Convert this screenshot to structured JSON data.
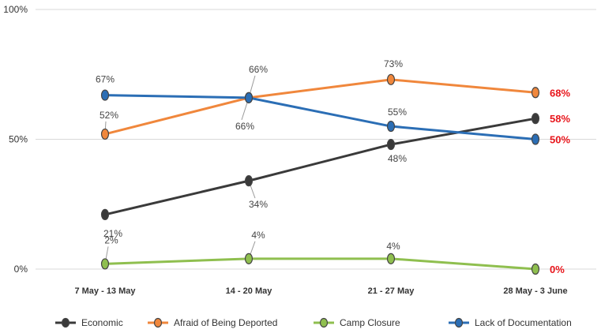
{
  "chart_data": {
    "type": "line",
    "categories": [
      "7 May - 13 May",
      "14 - 20 May",
      "21 - 27 May",
      "28 May - 3 June"
    ],
    "ylim": [
      0,
      100
    ],
    "yticks": [
      "0%",
      "50%",
      "100%"
    ],
    "grid": true,
    "legend_position": "bottom",
    "series": [
      {
        "name": "Economic",
        "color": "#3a3a3a",
        "values": [
          21,
          34,
          48,
          58
        ],
        "labels": [
          "21%",
          "34%",
          "48%",
          "58%"
        ]
      },
      {
        "name": "Afraid of Being Deported",
        "color": "#f0873c",
        "values": [
          52,
          66,
          73,
          68
        ],
        "labels": [
          "52%",
          "66%",
          "73%",
          "68%"
        ]
      },
      {
        "name": "Camp Closure",
        "color": "#8fbf4f",
        "values": [
          2,
          4,
          4,
          0
        ],
        "labels": [
          "2%",
          "4%",
          "4%",
          "0%"
        ]
      },
      {
        "name": "Lack of Documentation",
        "color": "#2b6eb5",
        "values": [
          67,
          66,
          55,
          50
        ],
        "labels": [
          "67%",
          "66%",
          "55%",
          "50%"
        ]
      }
    ],
    "end_label_color": "#e8151b"
  }
}
